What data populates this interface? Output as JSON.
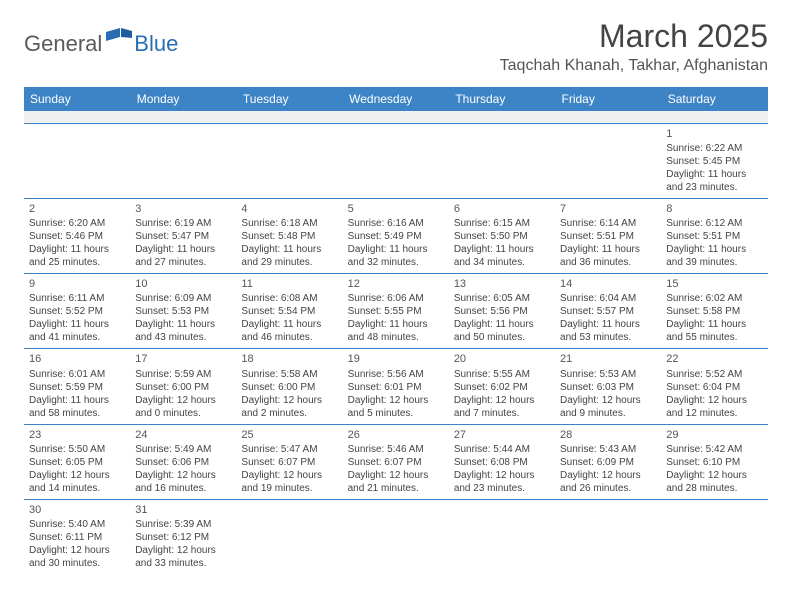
{
  "brand": {
    "part1": "General",
    "part2": "Blue"
  },
  "title": "March 2025",
  "location": "Taqchah Khanah, Takhar, Afghanistan",
  "colors": {
    "header_bg": "#3d84c6",
    "header_text": "#ffffff",
    "border": "#3d84c6",
    "brand_gray": "#5a5a5a",
    "brand_blue": "#2a6db5",
    "empty_row_bg": "#f0f0f0"
  },
  "day_headers": [
    "Sunday",
    "Monday",
    "Tuesday",
    "Wednesday",
    "Thursday",
    "Friday",
    "Saturday"
  ],
  "weeks": [
    [
      null,
      null,
      null,
      null,
      null,
      null,
      {
        "n": "1",
        "sr": "Sunrise: 6:22 AM",
        "ss": "Sunset: 5:45 PM",
        "dl1": "Daylight: 11 hours",
        "dl2": "and 23 minutes."
      }
    ],
    [
      {
        "n": "2",
        "sr": "Sunrise: 6:20 AM",
        "ss": "Sunset: 5:46 PM",
        "dl1": "Daylight: 11 hours",
        "dl2": "and 25 minutes."
      },
      {
        "n": "3",
        "sr": "Sunrise: 6:19 AM",
        "ss": "Sunset: 5:47 PM",
        "dl1": "Daylight: 11 hours",
        "dl2": "and 27 minutes."
      },
      {
        "n": "4",
        "sr": "Sunrise: 6:18 AM",
        "ss": "Sunset: 5:48 PM",
        "dl1": "Daylight: 11 hours",
        "dl2": "and 29 minutes."
      },
      {
        "n": "5",
        "sr": "Sunrise: 6:16 AM",
        "ss": "Sunset: 5:49 PM",
        "dl1": "Daylight: 11 hours",
        "dl2": "and 32 minutes."
      },
      {
        "n": "6",
        "sr": "Sunrise: 6:15 AM",
        "ss": "Sunset: 5:50 PM",
        "dl1": "Daylight: 11 hours",
        "dl2": "and 34 minutes."
      },
      {
        "n": "7",
        "sr": "Sunrise: 6:14 AM",
        "ss": "Sunset: 5:51 PM",
        "dl1": "Daylight: 11 hours",
        "dl2": "and 36 minutes."
      },
      {
        "n": "8",
        "sr": "Sunrise: 6:12 AM",
        "ss": "Sunset: 5:51 PM",
        "dl1": "Daylight: 11 hours",
        "dl2": "and 39 minutes."
      }
    ],
    [
      {
        "n": "9",
        "sr": "Sunrise: 6:11 AM",
        "ss": "Sunset: 5:52 PM",
        "dl1": "Daylight: 11 hours",
        "dl2": "and 41 minutes."
      },
      {
        "n": "10",
        "sr": "Sunrise: 6:09 AM",
        "ss": "Sunset: 5:53 PM",
        "dl1": "Daylight: 11 hours",
        "dl2": "and 43 minutes."
      },
      {
        "n": "11",
        "sr": "Sunrise: 6:08 AM",
        "ss": "Sunset: 5:54 PM",
        "dl1": "Daylight: 11 hours",
        "dl2": "and 46 minutes."
      },
      {
        "n": "12",
        "sr": "Sunrise: 6:06 AM",
        "ss": "Sunset: 5:55 PM",
        "dl1": "Daylight: 11 hours",
        "dl2": "and 48 minutes."
      },
      {
        "n": "13",
        "sr": "Sunrise: 6:05 AM",
        "ss": "Sunset: 5:56 PM",
        "dl1": "Daylight: 11 hours",
        "dl2": "and 50 minutes."
      },
      {
        "n": "14",
        "sr": "Sunrise: 6:04 AM",
        "ss": "Sunset: 5:57 PM",
        "dl1": "Daylight: 11 hours",
        "dl2": "and 53 minutes."
      },
      {
        "n": "15",
        "sr": "Sunrise: 6:02 AM",
        "ss": "Sunset: 5:58 PM",
        "dl1": "Daylight: 11 hours",
        "dl2": "and 55 minutes."
      }
    ],
    [
      {
        "n": "16",
        "sr": "Sunrise: 6:01 AM",
        "ss": "Sunset: 5:59 PM",
        "dl1": "Daylight: 11 hours",
        "dl2": "and 58 minutes."
      },
      {
        "n": "17",
        "sr": "Sunrise: 5:59 AM",
        "ss": "Sunset: 6:00 PM",
        "dl1": "Daylight: 12 hours",
        "dl2": "and 0 minutes."
      },
      {
        "n": "18",
        "sr": "Sunrise: 5:58 AM",
        "ss": "Sunset: 6:00 PM",
        "dl1": "Daylight: 12 hours",
        "dl2": "and 2 minutes."
      },
      {
        "n": "19",
        "sr": "Sunrise: 5:56 AM",
        "ss": "Sunset: 6:01 PM",
        "dl1": "Daylight: 12 hours",
        "dl2": "and 5 minutes."
      },
      {
        "n": "20",
        "sr": "Sunrise: 5:55 AM",
        "ss": "Sunset: 6:02 PM",
        "dl1": "Daylight: 12 hours",
        "dl2": "and 7 minutes."
      },
      {
        "n": "21",
        "sr": "Sunrise: 5:53 AM",
        "ss": "Sunset: 6:03 PM",
        "dl1": "Daylight: 12 hours",
        "dl2": "and 9 minutes."
      },
      {
        "n": "22",
        "sr": "Sunrise: 5:52 AM",
        "ss": "Sunset: 6:04 PM",
        "dl1": "Daylight: 12 hours",
        "dl2": "and 12 minutes."
      }
    ],
    [
      {
        "n": "23",
        "sr": "Sunrise: 5:50 AM",
        "ss": "Sunset: 6:05 PM",
        "dl1": "Daylight: 12 hours",
        "dl2": "and 14 minutes."
      },
      {
        "n": "24",
        "sr": "Sunrise: 5:49 AM",
        "ss": "Sunset: 6:06 PM",
        "dl1": "Daylight: 12 hours",
        "dl2": "and 16 minutes."
      },
      {
        "n": "25",
        "sr": "Sunrise: 5:47 AM",
        "ss": "Sunset: 6:07 PM",
        "dl1": "Daylight: 12 hours",
        "dl2": "and 19 minutes."
      },
      {
        "n": "26",
        "sr": "Sunrise: 5:46 AM",
        "ss": "Sunset: 6:07 PM",
        "dl1": "Daylight: 12 hours",
        "dl2": "and 21 minutes."
      },
      {
        "n": "27",
        "sr": "Sunrise: 5:44 AM",
        "ss": "Sunset: 6:08 PM",
        "dl1": "Daylight: 12 hours",
        "dl2": "and 23 minutes."
      },
      {
        "n": "28",
        "sr": "Sunrise: 5:43 AM",
        "ss": "Sunset: 6:09 PM",
        "dl1": "Daylight: 12 hours",
        "dl2": "and 26 minutes."
      },
      {
        "n": "29",
        "sr": "Sunrise: 5:42 AM",
        "ss": "Sunset: 6:10 PM",
        "dl1": "Daylight: 12 hours",
        "dl2": "and 28 minutes."
      }
    ],
    [
      {
        "n": "30",
        "sr": "Sunrise: 5:40 AM",
        "ss": "Sunset: 6:11 PM",
        "dl1": "Daylight: 12 hours",
        "dl2": "and 30 minutes."
      },
      {
        "n": "31",
        "sr": "Sunrise: 5:39 AM",
        "ss": "Sunset: 6:12 PM",
        "dl1": "Daylight: 12 hours",
        "dl2": "and 33 minutes."
      },
      null,
      null,
      null,
      null,
      null
    ]
  ]
}
